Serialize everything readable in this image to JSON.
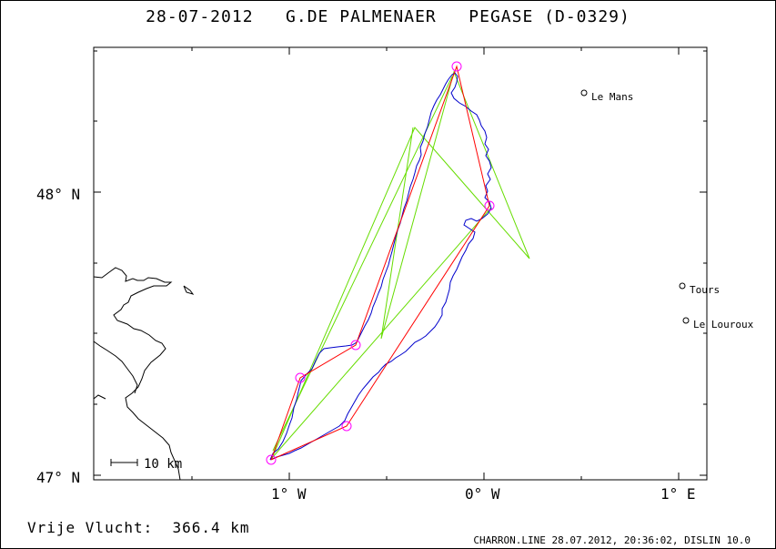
{
  "header": {
    "date": "28-07-2012",
    "pilot": "G.DE PALMENAER",
    "glider": "PEGASE (D-0329)"
  },
  "map": {
    "lat_labels": [
      "48° N",
      "47° N"
    ],
    "lon_labels": [
      "1° W",
      "0° W",
      "1° E"
    ],
    "cities": [
      {
        "name": "Le Mans",
        "lon": 0.52,
        "lat": 48.35
      },
      {
        "name": "Tours",
        "lon": 1.01,
        "lat": 47.65
      },
      {
        "name": "Le Louroux",
        "lon": 1.03,
        "lat": 47.55
      }
    ],
    "scale_label": "10 km",
    "colors": {
      "track": "#0000cc",
      "task": "#ff0000",
      "green": "#66dd00",
      "turnpoint": "#ff00ff",
      "coast": "#000000"
    }
  },
  "footer": {
    "distance": "Vrije Vlucht:  366.4 km",
    "credits": "CHARRON.LINE 28.07.2012, 20:36:02, DISLIN 10.0"
  }
}
